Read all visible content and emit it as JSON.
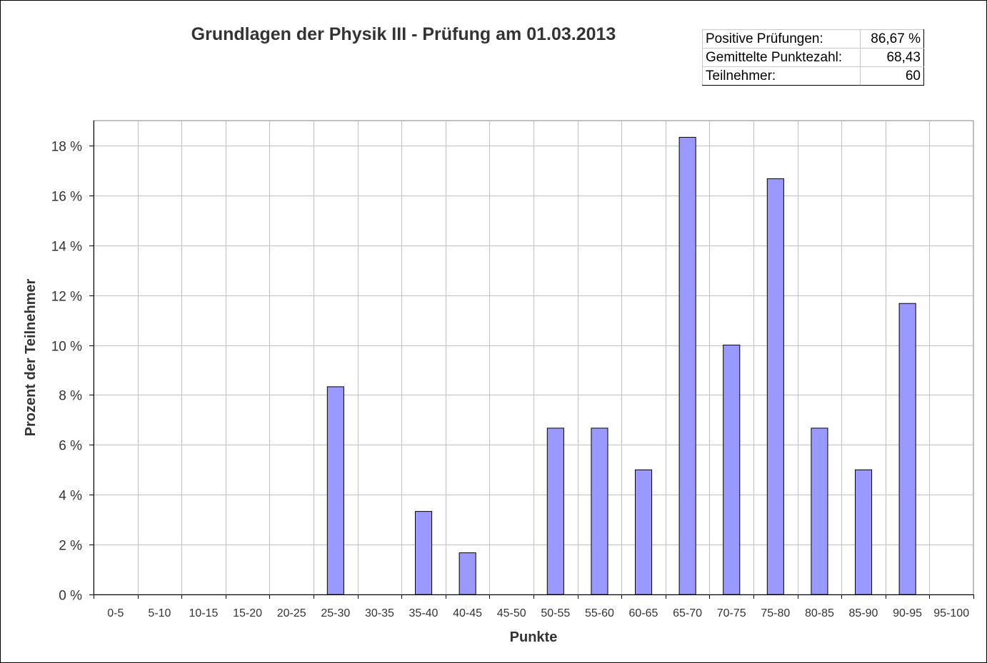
{
  "stats": {
    "rows": [
      {
        "label": "Positive Prüfungen:",
        "value": "86,67 %"
      },
      {
        "label": "Gemittelte Punktezahl:",
        "value": "68,43"
      },
      {
        "label": "Teilnehmer:",
        "value": "60"
      }
    ]
  },
  "chart_data": {
    "type": "bar",
    "title": "Grundlagen der Physik III - Prüfung am 01.03.2013",
    "xlabel": "Punkte",
    "ylabel": "Prozent der Teilnehmer",
    "categories": [
      "0-5",
      "5-10",
      "10-15",
      "15-20",
      "20-25",
      "25-30",
      "30-35",
      "35-40",
      "40-45",
      "45-50",
      "50-55",
      "55-60",
      "60-65",
      "65-70",
      "70-75",
      "75-80",
      "80-85",
      "85-90",
      "90-95",
      "95-100"
    ],
    "values": [
      0,
      0,
      0,
      0,
      0,
      8.33,
      0,
      3.33,
      1.67,
      0,
      6.67,
      6.67,
      5.0,
      18.33,
      10.0,
      16.67,
      6.67,
      5.0,
      11.67,
      0
    ],
    "ylim": [
      0,
      19
    ],
    "yticks": [
      0,
      2,
      4,
      6,
      8,
      10,
      12,
      14,
      16,
      18
    ],
    "ytick_labels": [
      "0 %",
      "2 %",
      "4 %",
      "6 %",
      "8 %",
      "10 %",
      "12 %",
      "14 %",
      "16 %",
      "18 %"
    ],
    "grid": true,
    "legend": "none",
    "bar_color": "#9999ff",
    "bar_edge_color": "#000000",
    "grid_color": "#c0c0c0"
  }
}
